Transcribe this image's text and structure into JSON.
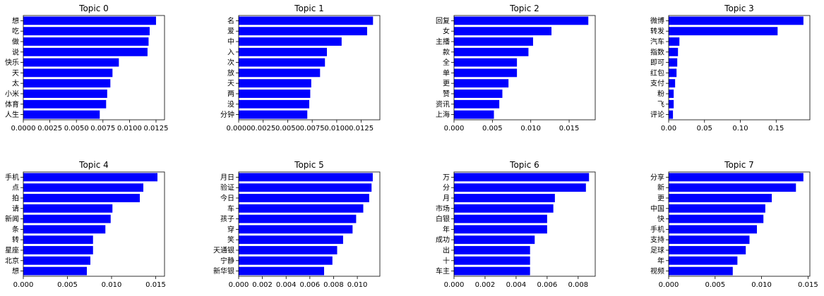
{
  "chart_data": [
    {
      "type": "bar",
      "orientation": "horizontal",
      "title": "Topic 0",
      "categories": [
        "想",
        "吃",
        "做",
        "说",
        "快乐",
        "天",
        "太",
        "小米",
        "体育",
        "人生"
      ],
      "values": [
        0.0125,
        0.0119,
        0.0118,
        0.0117,
        0.009,
        0.0084,
        0.0082,
        0.0079,
        0.0078,
        0.0072
      ],
      "xlim": [
        0,
        0.0133
      ],
      "xticks": [
        0,
        0.0025,
        0.005,
        0.0075,
        0.01,
        0.0125
      ],
      "xtick_labels": [
        "0.0000",
        "0.0025",
        "0.0050",
        "0.0075",
        "0.0100",
        "0.0125"
      ],
      "color": "#0000ff"
    },
    {
      "type": "bar",
      "orientation": "horizontal",
      "title": "Topic 1",
      "categories": [
        "名",
        "爱",
        "中",
        "入",
        "次",
        "放",
        "天",
        "两",
        "没",
        "分钟"
      ],
      "values": [
        0.0137,
        0.0131,
        0.0105,
        0.009,
        0.0088,
        0.0083,
        0.0074,
        0.0073,
        0.0072,
        0.007
      ],
      "xlim": [
        0,
        0.0144
      ],
      "xticks": [
        0,
        0.0025,
        0.005,
        0.0075,
        0.01,
        0.0125
      ],
      "xtick_labels": [
        "0.0000",
        "0.0025",
        "0.0050",
        "0.0075",
        "0.0100",
        "0.0125"
      ],
      "color": "#0000ff"
    },
    {
      "type": "bar",
      "orientation": "horizontal",
      "title": "Topic 2",
      "categories": [
        "回复",
        "女",
        "主播",
        "款",
        "全",
        "单",
        "更",
        "赞",
        "资讯",
        "上海"
      ],
      "values": [
        0.0175,
        0.0127,
        0.0103,
        0.0097,
        0.0082,
        0.0082,
        0.0071,
        0.0063,
        0.0059,
        0.0052
      ],
      "xlim": [
        0,
        0.0184
      ],
      "xticks": [
        0,
        0.005,
        0.01,
        0.015
      ],
      "xtick_labels": [
        "0.000",
        "0.005",
        "0.010",
        "0.015"
      ],
      "color": "#0000ff"
    },
    {
      "type": "bar",
      "orientation": "horizontal",
      "title": "Topic 3",
      "categories": [
        "微博",
        "转发",
        "汽车",
        "指数",
        "即可",
        "红包",
        "支付",
        "粉",
        "飞",
        "评论"
      ],
      "values": [
        0.188,
        0.152,
        0.015,
        0.013,
        0.012,
        0.011,
        0.009,
        0.007,
        0.007,
        0.006
      ],
      "xlim": [
        0,
        0.197
      ],
      "xticks": [
        0,
        0.05,
        0.1,
        0.15
      ],
      "xtick_labels": [
        "0.00",
        "0.05",
        "0.10",
        "0.15"
      ],
      "color": "#0000ff"
    },
    {
      "type": "bar",
      "orientation": "horizontal",
      "title": "Topic 4",
      "categories": [
        "手机",
        "点",
        "拍",
        "请",
        "新闻",
        "条",
        "转",
        "星座",
        "北京",
        "想"
      ],
      "values": [
        0.0152,
        0.0136,
        0.0132,
        0.0101,
        0.0099,
        0.0093,
        0.0079,
        0.0079,
        0.0076,
        0.0072
      ],
      "xlim": [
        0,
        0.016
      ],
      "xticks": [
        0,
        0.005,
        0.01,
        0.015
      ],
      "xtick_labels": [
        "0.000",
        "0.005",
        "0.010",
        "0.015"
      ],
      "color": "#0000ff"
    },
    {
      "type": "bar",
      "orientation": "horizontal",
      "title": "Topic 5",
      "categories": [
        "月日",
        "验证",
        "今日",
        "车",
        "孩子",
        "穿",
        "笑",
        "天通银",
        "宁静",
        "新华银"
      ],
      "values": [
        0.0113,
        0.0112,
        0.011,
        0.0105,
        0.0099,
        0.0096,
        0.0088,
        0.0083,
        0.0079,
        0.0072
      ],
      "xlim": [
        0,
        0.0119
      ],
      "xticks": [
        0,
        0.002,
        0.004,
        0.006,
        0.008,
        0.01
      ],
      "xtick_labels": [
        "0.000",
        "0.002",
        "0.004",
        "0.006",
        "0.008",
        "0.010"
      ],
      "color": "#0000ff"
    },
    {
      "type": "bar",
      "orientation": "horizontal",
      "title": "Topic 6",
      "categories": [
        "万",
        "分",
        "月",
        "市场",
        "白银",
        "年",
        "成功",
        "出",
        "十",
        "车主"
      ],
      "values": [
        0.0087,
        0.0085,
        0.0065,
        0.0064,
        0.006,
        0.006,
        0.0052,
        0.0049,
        0.0049,
        0.0049
      ],
      "xlim": [
        0,
        0.0091
      ],
      "xticks": [
        0,
        0.002,
        0.004,
        0.006,
        0.008
      ],
      "xtick_labels": [
        "0.000",
        "0.002",
        "0.004",
        "0.006",
        "0.008"
      ],
      "color": "#0000ff"
    },
    {
      "type": "bar",
      "orientation": "horizontal",
      "title": "Topic 7",
      "categories": [
        "分享",
        "新",
        "更",
        "中国",
        "快",
        "手机",
        "支持",
        "足球",
        "年",
        "视频"
      ],
      "values": [
        0.0145,
        0.0137,
        0.0111,
        0.0104,
        0.0102,
        0.0095,
        0.0087,
        0.0083,
        0.0074,
        0.0069
      ],
      "xlim": [
        0,
        0.0152
      ],
      "xticks": [
        0,
        0.005,
        0.01,
        0.015
      ],
      "xtick_labels": [
        "0.000",
        "0.005",
        "0.010",
        "0.015"
      ],
      "color": "#0000ff"
    }
  ]
}
